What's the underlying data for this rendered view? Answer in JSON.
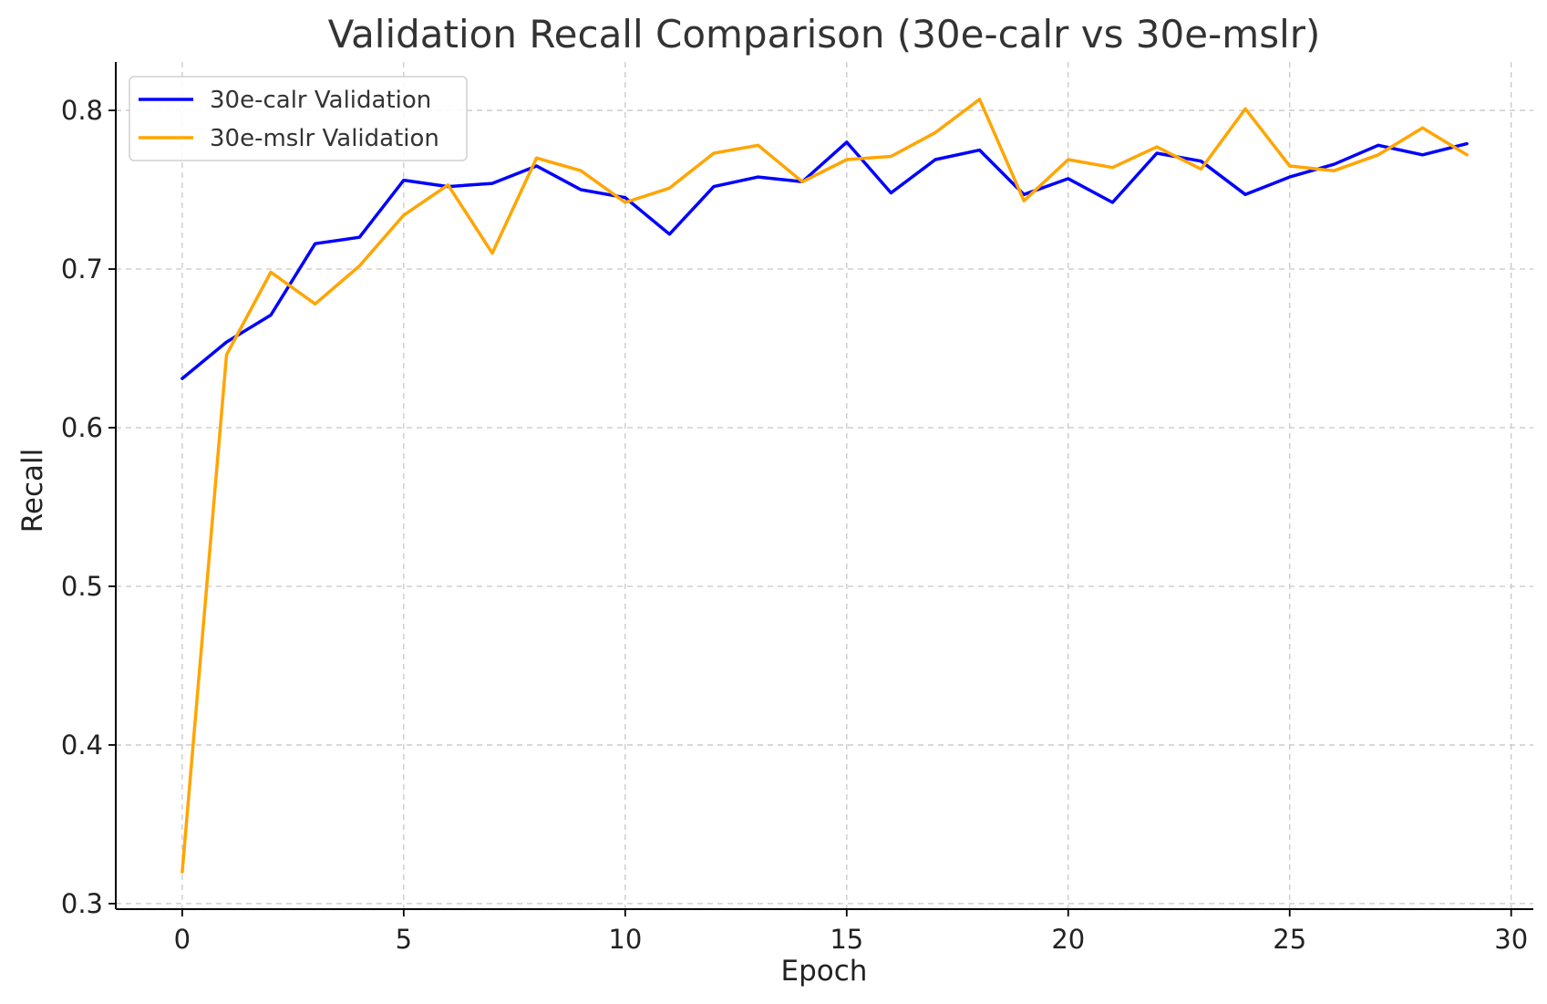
{
  "chart_data": {
    "type": "line",
    "title": "Validation Recall Comparison (30e-calr vs 30e-mslr)",
    "xlabel": "Epoch",
    "ylabel": "Recall",
    "xlim": [
      -1.5,
      30.5
    ],
    "ylim": [
      0.2965,
      0.8305
    ],
    "xticks": [
      0,
      5,
      10,
      15,
      20,
      25,
      30
    ],
    "xtick_labels": [
      "0",
      "5",
      "10",
      "15",
      "20",
      "25",
      "30"
    ],
    "yticks": [
      0.3,
      0.4,
      0.5,
      0.6,
      0.7,
      0.8
    ],
    "ytick_labels": [
      "0.3",
      "0.4",
      "0.5",
      "0.6",
      "0.7",
      "0.8"
    ],
    "grid": true,
    "legend_position": "top-left",
    "x": [
      0,
      1,
      2,
      3,
      4,
      5,
      6,
      7,
      8,
      9,
      10,
      11,
      12,
      13,
      14,
      15,
      16,
      17,
      18,
      19,
      20,
      21,
      22,
      23,
      24,
      25,
      26,
      27,
      28,
      29
    ],
    "series": [
      {
        "name": "30e-calr Validation",
        "color": "#0000ff",
        "values": [
          0.631,
          0.654,
          0.671,
          0.716,
          0.72,
          0.756,
          0.752,
          0.754,
          0.765,
          0.75,
          0.745,
          0.722,
          0.752,
          0.758,
          0.755,
          0.78,
          0.748,
          0.769,
          0.775,
          0.747,
          0.757,
          0.742,
          0.773,
          0.768,
          0.747,
          0.758,
          0.766,
          0.778,
          0.772,
          0.779
        ]
      },
      {
        "name": "30e-mslr Validation",
        "color": "#ffa500",
        "values": [
          0.32,
          0.646,
          0.698,
          0.678,
          0.702,
          0.734,
          0.753,
          0.71,
          0.77,
          0.762,
          0.742,
          0.751,
          0.773,
          0.778,
          0.755,
          0.769,
          0.771,
          0.786,
          0.807,
          0.743,
          0.769,
          0.764,
          0.777,
          0.763,
          0.801,
          0.765,
          0.762,
          0.772,
          0.789,
          0.772
        ]
      }
    ]
  }
}
